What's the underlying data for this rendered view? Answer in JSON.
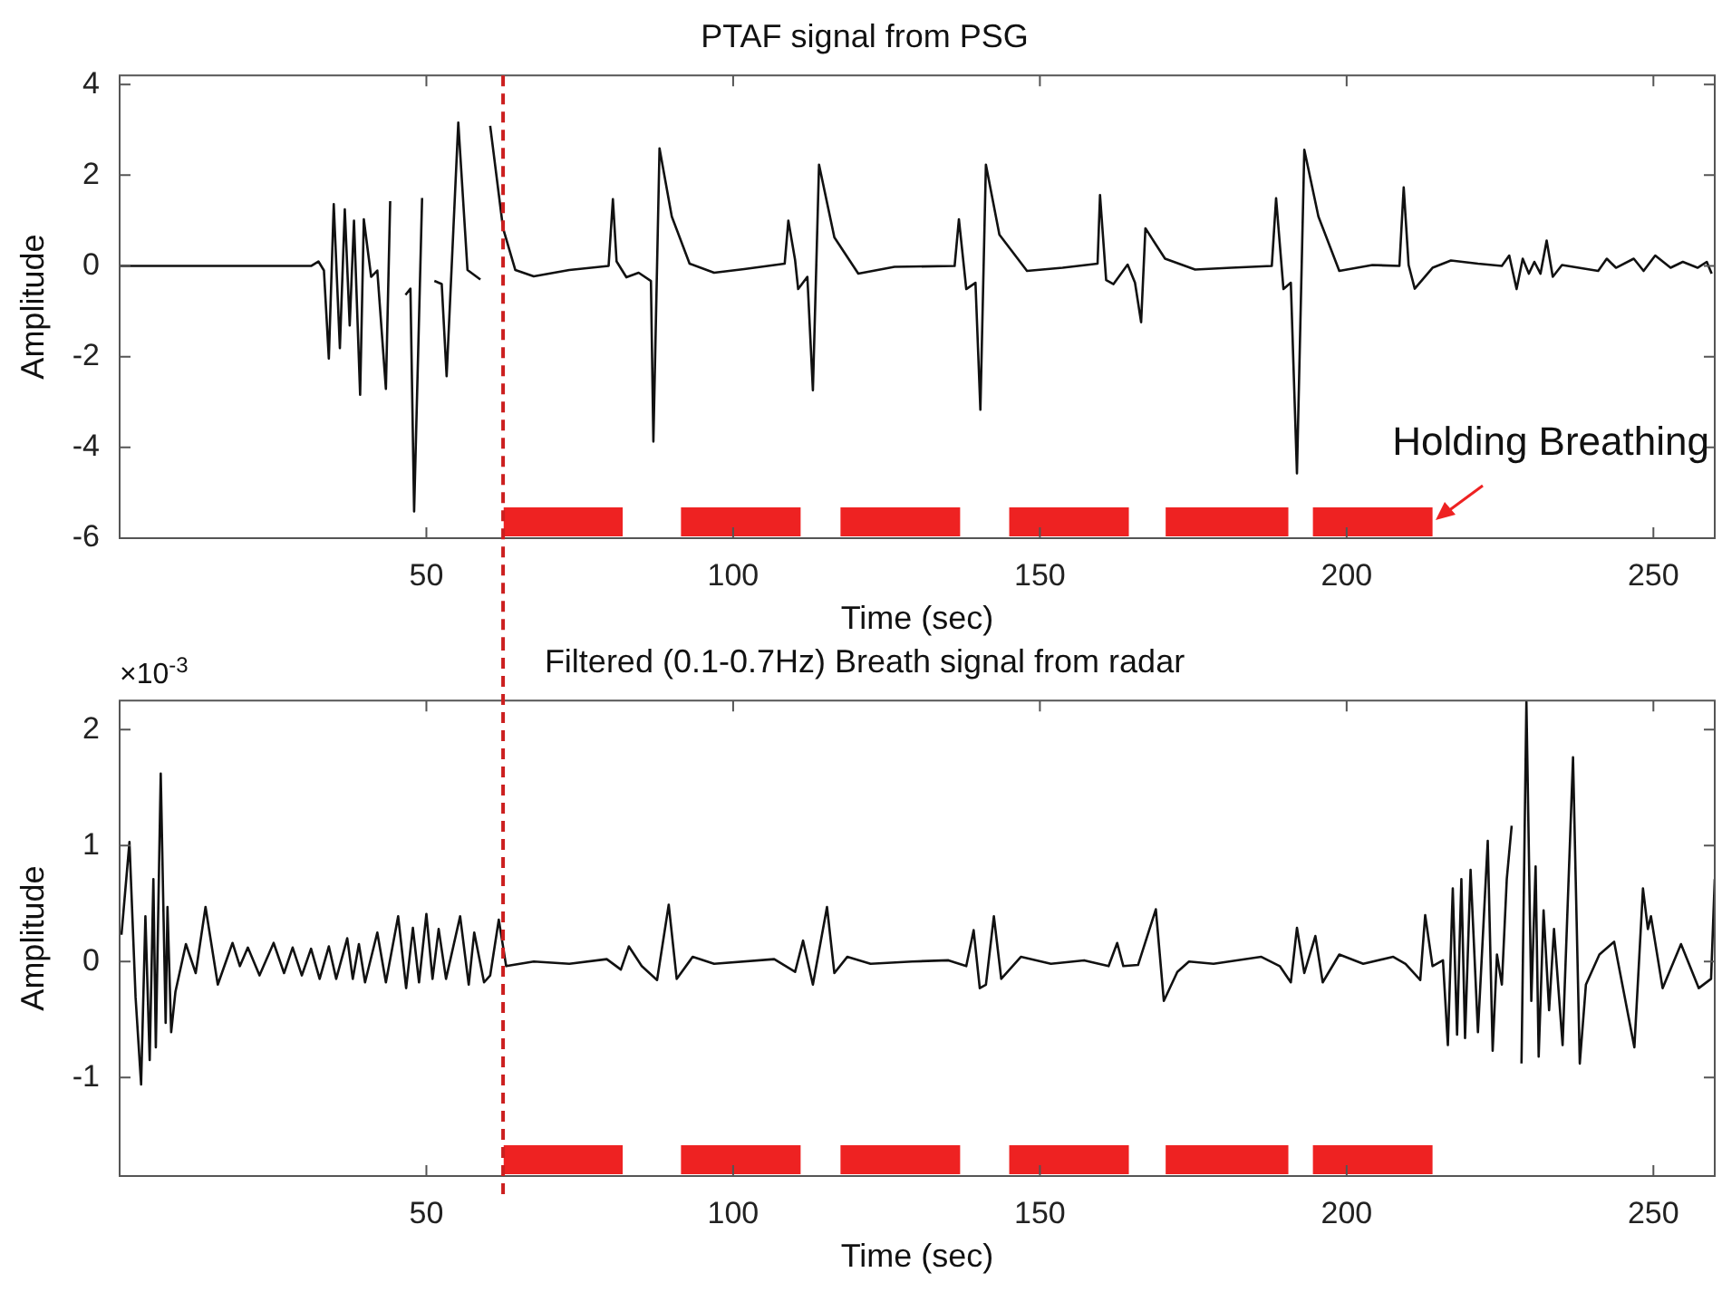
{
  "chart_data": [
    {
      "type": "line",
      "title": "PTAF signal from PSG",
      "xlabel": "Time (sec)",
      "ylabel": "Amplitude",
      "color": "#111111",
      "marker": "none",
      "line_style": "solid",
      "xlim": [
        0,
        260
      ],
      "xticks": [
        50,
        100,
        150,
        200,
        250
      ],
      "ylim": [
        -6,
        4.2
      ],
      "yticks": [
        -6,
        -4,
        -2,
        0,
        2,
        4
      ],
      "x": [
        0,
        31.2,
        32.4,
        33.3,
        34.1,
        34.9,
        35.9,
        36.7,
        37.5,
        38.2,
        39.2,
        39.8,
        41.0,
        42.0,
        43.4,
        44.1,
        45.1,
        46.6,
        47.4,
        48.0,
        49.3,
        50.0,
        51.3,
        52.5,
        53.3,
        55.2,
        56.7,
        58.8,
        59.6,
        60.4,
        62.5,
        64.5,
        67.5,
        73.3,
        79.7,
        80.4,
        81.0,
        82.6,
        84.6,
        86.6,
        87.0,
        88.0,
        90.0,
        92.9,
        96.9,
        101.8,
        108.4,
        109.0,
        110.1,
        110.6,
        112.1,
        113.0,
        114.0,
        116.5,
        120.4,
        126.3,
        136.1,
        136.8,
        138.0,
        139.5,
        140.3,
        141.2,
        143.4,
        147.9,
        153.7,
        159.4,
        159.8,
        160.8,
        162.0,
        164.3,
        165.5,
        166.5,
        167.2,
        170.4,
        175.3,
        181.2,
        187.8,
        188.5,
        189.7,
        190.9,
        191.9,
        193.1,
        195.4,
        198.8,
        204.2,
        208.6,
        209.3,
        210.1,
        211.1,
        214.0,
        217.0,
        221.4,
        225.3,
        226.5,
        227.7,
        228.7,
        229.7,
        230.6,
        231.6,
        232.6,
        233.6,
        235.1,
        241.0,
        242.4,
        243.9,
        246.8,
        248.4,
        250.3,
        252.8,
        254.8,
        257.2,
        258.7,
        259.5
      ],
      "values": [
        0,
        0,
        0.1,
        -0.1,
        -2.04,
        1.36,
        -1.81,
        1.25,
        -1.31,
        1.0,
        -2.84,
        1.03,
        -0.24,
        -0.1,
        -2.71,
        1.43,
        null,
        -0.64,
        -0.5,
        -5.41,
        1.5,
        null,
        -0.33,
        -0.4,
        -2.43,
        3.16,
        -0.09,
        -0.3,
        null,
        3.09,
        0.83,
        -0.09,
        -0.23,
        -0.09,
        0,
        1.47,
        0.1,
        -0.25,
        -0.15,
        -0.33,
        -3.87,
        2.59,
        1.09,
        0.05,
        -0.15,
        -0.07,
        0.05,
        1.0,
        0.13,
        -0.51,
        -0.24,
        -2.74,
        2.23,
        0.63,
        -0.17,
        -0.02,
        0,
        1.03,
        -0.51,
        -0.37,
        -3.17,
        2.23,
        0.69,
        -0.11,
        -0.04,
        0.05,
        1.56,
        -0.31,
        -0.4,
        0.03,
        -0.37,
        -1.24,
        0.83,
        0.16,
        -0.08,
        -0.04,
        0,
        1.49,
        -0.51,
        -0.37,
        -4.57,
        2.56,
        1.09,
        -0.11,
        0.02,
        0,
        1.73,
        0.02,
        -0.5,
        -0.04,
        0.12,
        0.05,
        0,
        0.23,
        -0.51,
        0.16,
        -0.17,
        0.09,
        -0.17,
        0.56,
        -0.24,
        0.02,
        -0.11,
        0.16,
        -0.04,
        0.16,
        -0.11,
        0.23,
        -0.04,
        0.09,
        -0.04,
        0.09,
        -0.17
      ],
      "bands": [
        {
          "axis": "x",
          "from": 62.6,
          "to": 82,
          "color": "#ee2222"
        },
        {
          "axis": "x",
          "from": 91.5,
          "to": 111,
          "color": "#ee2222"
        },
        {
          "axis": "x",
          "from": 117.5,
          "to": 137,
          "color": "#ee2222"
        },
        {
          "axis": "x",
          "from": 145,
          "to": 164.5,
          "color": "#ee2222"
        },
        {
          "axis": "x",
          "from": 170.5,
          "to": 190.5,
          "color": "#ee2222"
        },
        {
          "axis": "x",
          "from": 194.5,
          "to": 214,
          "color": "#ee2222"
        }
      ],
      "ref_lines": [
        {
          "axis": "x",
          "value": 62.5,
          "color": "#cc1f1f",
          "line_style": "dashed"
        }
      ],
      "annotations": [
        "Holding Breathing"
      ]
    },
    {
      "type": "line",
      "title": "Filtered (0.1-0.7Hz) Breath signal from radar",
      "xlabel": "Time (sec)",
      "ylabel": "Amplitude",
      "color": "#111111",
      "marker": "none",
      "line_style": "solid",
      "xlim": [
        0,
        260
      ],
      "xticks": [
        50,
        100,
        150,
        200,
        250
      ],
      "ylim": [
        -1.85,
        2.25
      ],
      "yticks": [
        -1,
        0,
        1,
        2
      ],
      "x": [
        0.3,
        1.6,
        2.6,
        3.5,
        4.2,
        4.9,
        5.5,
        5.9,
        6.7,
        7.5,
        7.8,
        8.4,
        9.1,
        10.8,
        12.4,
        14.0,
        16.0,
        18.4,
        19.6,
        20.9,
        22.8,
        25.1,
        26.8,
        28.2,
        29.7,
        31.2,
        32.6,
        34.1,
        35.3,
        37.1,
        38.0,
        39.0,
        40.0,
        42.0,
        43.4,
        45.4,
        46.7,
        47.8,
        48.8,
        50.0,
        51.0,
        52.0,
        53.2,
        55.5,
        56.9,
        57.8,
        59.4,
        60.4,
        61.8,
        63.0,
        67.5,
        73.3,
        79.4,
        81.7,
        83.0,
        85.1,
        87.6,
        89.5,
        90.8,
        93.4,
        96.9,
        106.7,
        110.1,
        111.4,
        113.0,
        115.3,
        116.5,
        118.6,
        122.4,
        129.2,
        135.1,
        138.0,
        139.2,
        140.2,
        141.2,
        142.5,
        143.7,
        146.9,
        151.8,
        157.2,
        161.2,
        162.6,
        163.6,
        166.0,
        168.9,
        170.2,
        172.4,
        174.3,
        178.3,
        186.1,
        189.1,
        190.9,
        191.9,
        193.1,
        194.9,
        196.1,
        198.8,
        202.7,
        207.6,
        209.6,
        212.0,
        212.8,
        214.0,
        215.7,
        216.5,
        217.3,
        218.0,
        218.7,
        219.3,
        220.2,
        221.4,
        223.0,
        223.8,
        224.5,
        225.3,
        226.1,
        226.9,
        227.9,
        228.5,
        229.3,
        230.1,
        230.8,
        231.3,
        232.1,
        233.0,
        233.8,
        235.2,
        236.9,
        238.0,
        239.0,
        241.2,
        243.6,
        246.9,
        248.3,
        249.1,
        249.6,
        251.5,
        254.5,
        257.4,
        259.4,
        260.0
      ],
      "values": [
        0.23,
        1.03,
        -0.31,
        -1.06,
        0.39,
        -0.85,
        0.71,
        -0.74,
        1.62,
        -0.53,
        0.47,
        -0.61,
        -0.26,
        0.15,
        -0.1,
        0.47,
        -0.2,
        0.16,
        -0.04,
        0.12,
        -0.12,
        0.16,
        -0.1,
        0.12,
        -0.12,
        0.11,
        -0.15,
        0.13,
        -0.15,
        0.2,
        -0.15,
        0.15,
        -0.18,
        0.25,
        -0.18,
        0.39,
        -0.23,
        0.29,
        -0.18,
        0.41,
        -0.15,
        0.28,
        -0.15,
        0.39,
        -0.2,
        0.25,
        -0.18,
        -0.12,
        0.36,
        -0.04,
        0,
        -0.02,
        0.02,
        -0.07,
        0.13,
        -0.04,
        -0.16,
        0.49,
        -0.15,
        0.04,
        -0.02,
        0.02,
        -0.09,
        0.18,
        -0.2,
        0.47,
        -0.1,
        0.04,
        -0.02,
        0,
        0.01,
        -0.04,
        0.27,
        -0.23,
        -0.2,
        0.39,
        -0.15,
        0.04,
        -0.02,
        0.01,
        -0.04,
        0.16,
        -0.04,
        -0.03,
        0.45,
        -0.34,
        -0.09,
        0,
        -0.02,
        0.04,
        -0.04,
        -0.18,
        0.29,
        -0.1,
        0.22,
        -0.18,
        0.06,
        -0.02,
        0.04,
        -0.02,
        -0.16,
        0.4,
        -0.04,
        0.01,
        -0.72,
        0.63,
        -0.63,
        0.71,
        -0.66,
        0.79,
        -0.61,
        1.04,
        -0.77,
        0.06,
        -0.2,
        0.71,
        1.17,
        null,
        -0.88,
        2.24,
        -0.34,
        0.82,
        -0.82,
        0.44,
        -0.42,
        0.28,
        -0.72,
        1.76,
        -0.88,
        -0.2,
        0.06,
        0.17,
        -0.74,
        0.63,
        0.28,
        0.39,
        -0.23,
        0.15,
        -0.23,
        -0.15,
        0.71
      ],
      "bands": [
        {
          "axis": "x",
          "from": 62.6,
          "to": 82,
          "color": "#ee2222"
        },
        {
          "axis": "x",
          "from": 91.5,
          "to": 111,
          "color": "#ee2222"
        },
        {
          "axis": "x",
          "from": 117.5,
          "to": 137,
          "color": "#ee2222"
        },
        {
          "axis": "x",
          "from": 145,
          "to": 164.5,
          "color": "#ee2222"
        },
        {
          "axis": "x",
          "from": 170.5,
          "to": 190.5,
          "color": "#ee2222"
        },
        {
          "axis": "x",
          "from": 194.5,
          "to": 214,
          "color": "#ee2222"
        }
      ],
      "ref_lines": [
        {
          "axis": "x",
          "value": 62.5,
          "color": "#cc1f1f",
          "line_style": "dashed"
        }
      ],
      "annotations": [
        "×10$^{-3}$"
      ]
    }
  ]
}
